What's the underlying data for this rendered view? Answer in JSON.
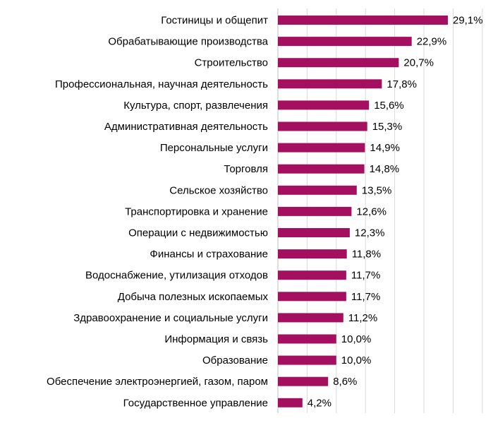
{
  "chart_data": {
    "type": "bar",
    "orientation": "horizontal",
    "title": "",
    "xlabel": "",
    "ylabel": "",
    "categories": [
      "Гостиницы и общепит",
      "Обрабатывающие производства",
      "Строительство",
      "Профессиональная, научная деятельность",
      "Культура, спорт, развлечения",
      "Административная деятельность",
      "Персональные услуги",
      "Торговля",
      "Сельское хозяйство",
      "Транспортировка и хранение",
      "Операции с недвижимостью",
      "Финансы и страхование",
      "Водоснабжение, утилизация отходов",
      "Добыча полезных ископаемых",
      "Здравоохранение и социальные услуги",
      "Информация и связь",
      "Образование",
      "Обеспечение электроэнергией, газом, паром",
      "Государственное управление"
    ],
    "values": [
      29.1,
      22.9,
      20.7,
      17.8,
      15.6,
      15.3,
      14.9,
      14.8,
      13.5,
      12.6,
      12.3,
      11.8,
      11.7,
      11.7,
      11.2,
      10.0,
      10.0,
      8.6,
      4.2
    ],
    "value_labels": [
      "29,1%",
      "22,9%",
      "20,7%",
      "17,8%",
      "15,6%",
      "15,3%",
      "14,9%",
      "14,8%",
      "13,5%",
      "12,6%",
      "12,3%",
      "11,8%",
      "11,7%",
      "11,7%",
      "11,2%",
      "10,0%",
      "10,0%",
      "8,6%",
      "4,2%"
    ],
    "xlim": [
      0,
      30
    ],
    "grid": true,
    "legend": "none",
    "bar_color": "#a50f5f"
  }
}
